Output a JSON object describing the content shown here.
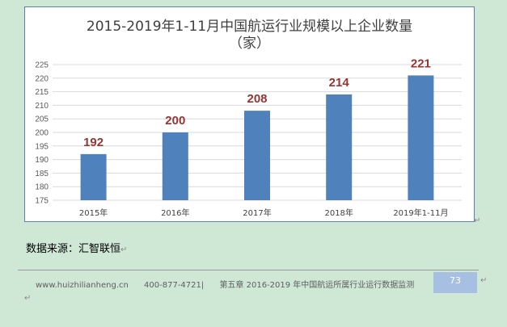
{
  "chart_data": {
    "type": "bar",
    "title_line1": "2015-2019年1-11月中国航运行业规模以上企业数量",
    "title_line2": "（家）",
    "categories": [
      "2015年",
      "2016年",
      "2017年",
      "2018年",
      "2019年1-11月"
    ],
    "values": [
      192,
      200,
      208,
      214,
      221
    ],
    "yticks": [
      175,
      180,
      185,
      190,
      195,
      200,
      205,
      210,
      215,
      220,
      225
    ],
    "ylim": [
      175,
      225
    ],
    "bar_color": "#4f81bd",
    "label_color": "#943634",
    "grid": true,
    "legend": false
  },
  "source_text": "数据来源：汇智联恒",
  "footer": {
    "website": "www.huizhilianheng.cn",
    "phone": "400-877-4721|",
    "chapter": "第五章 2016-2019 年中国航运所属行业运行数据监测",
    "page_number": "73"
  },
  "marks": {
    "return_arrow": "↵",
    "paragraph_mark": "↵"
  }
}
